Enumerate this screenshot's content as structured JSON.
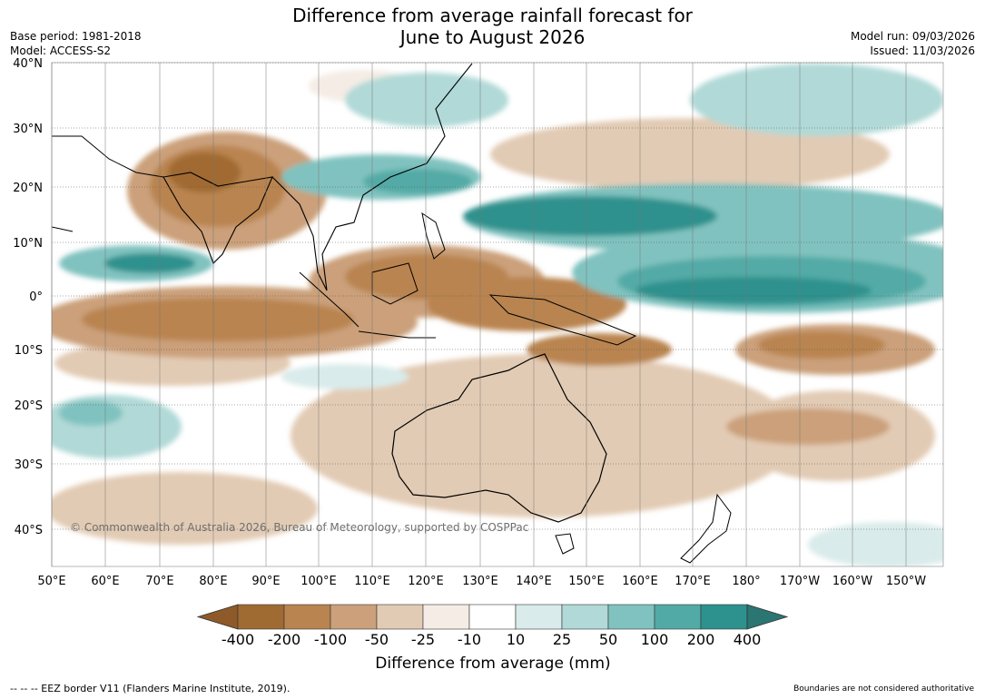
{
  "title": {
    "line1": "Difference from average rainfall forecast for",
    "line2": "June to August 2026"
  },
  "meta": {
    "base_period": "Base period: 1981-2018",
    "model": "Model: ACCESS-S2",
    "model_run": "Model run: 09/03/2026",
    "issued": "Issued: 11/03/2026"
  },
  "map": {
    "lat_labels": [
      "40°N",
      "30°N",
      "20°N",
      "10°N",
      "0°",
      "10°S",
      "20°S",
      "30°S",
      "40°S"
    ],
    "lon_labels": [
      "50°E",
      "60°E",
      "70°E",
      "80°E",
      "90°E",
      "100°E",
      "110°E",
      "120°E",
      "130°E",
      "140°E",
      "150°E",
      "160°E",
      "170°E",
      "180°",
      "170°W",
      "160°W",
      "150°W"
    ],
    "copyright": "© Commonwealth of Australia 2026, Bureau of Meteorology, supported by COSPPac"
  },
  "colorbar": {
    "ticks": [
      "-400",
      "-200",
      "-100",
      "-50",
      "-25",
      "-10",
      "10",
      "25",
      "50",
      "100",
      "200",
      "400"
    ],
    "colors": [
      "#a06a33",
      "#b9844f",
      "#cba07a",
      "#e2cbb4",
      "#f4ece5",
      "#ffffff",
      "#d9ebea",
      "#b0d9d7",
      "#80c2bf",
      "#52aaa6",
      "#2d918d"
    ],
    "low_arrow_color": "#8e5a2a",
    "high_arrow_color": "#2b7573",
    "label": "Difference from average (mm)"
  },
  "footer": {
    "eez": "-- -- -- EEZ border V11 (Flanders Marine Institute, 2019).",
    "disclaimer": "Boundaries are not considered authoritative"
  }
}
